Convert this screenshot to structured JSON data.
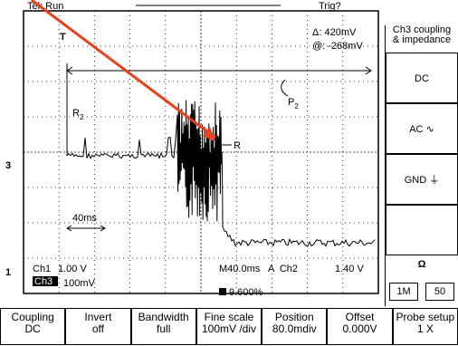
{
  "header": {
    "status": "Tek Run",
    "trigger": "Trig?"
  },
  "readout": {
    "delta": "Δ: 420mV",
    "at": "@: -268mV"
  },
  "annotations": {
    "r2": "R",
    "r2_sub": "2",
    "p2": "P",
    "p2_sub": "2",
    "r": "R",
    "time_span": "40ms"
  },
  "markers": {
    "trigger": "T",
    "ch3": "3",
    "ch1": "1"
  },
  "status_bar": {
    "ch1": "Ch1",
    "ch1_scale": "1.00 V",
    "ch3": "Ch3",
    "ch3_scale": "100mV",
    "timebase": "M40.0ms",
    "trigger_source": "A  Ch2",
    "trigger_level": "1.40 V",
    "position": "9.600%"
  },
  "side_menu": {
    "title": [
      "Ch3 coupling",
      "& impedance"
    ],
    "options": [
      "DC",
      "AC",
      "GND"
    ],
    "impedance_symbol": "Ω",
    "impedance_options": [
      "1M",
      "50"
    ]
  },
  "bottom_menu": [
    {
      "label": "Coupling",
      "value": "DC"
    },
    {
      "label": "Invert",
      "value": "off"
    },
    {
      "label": "Bandwidth",
      "value": "full"
    },
    {
      "label": "Fine scale",
      "value": "100mV /div"
    },
    {
      "label": "Position",
      "value": "80.0mdiv"
    },
    {
      "label": "Offset",
      "value": "0.000V"
    },
    {
      "label": "Probe setup",
      "value": "1 X"
    }
  ]
}
